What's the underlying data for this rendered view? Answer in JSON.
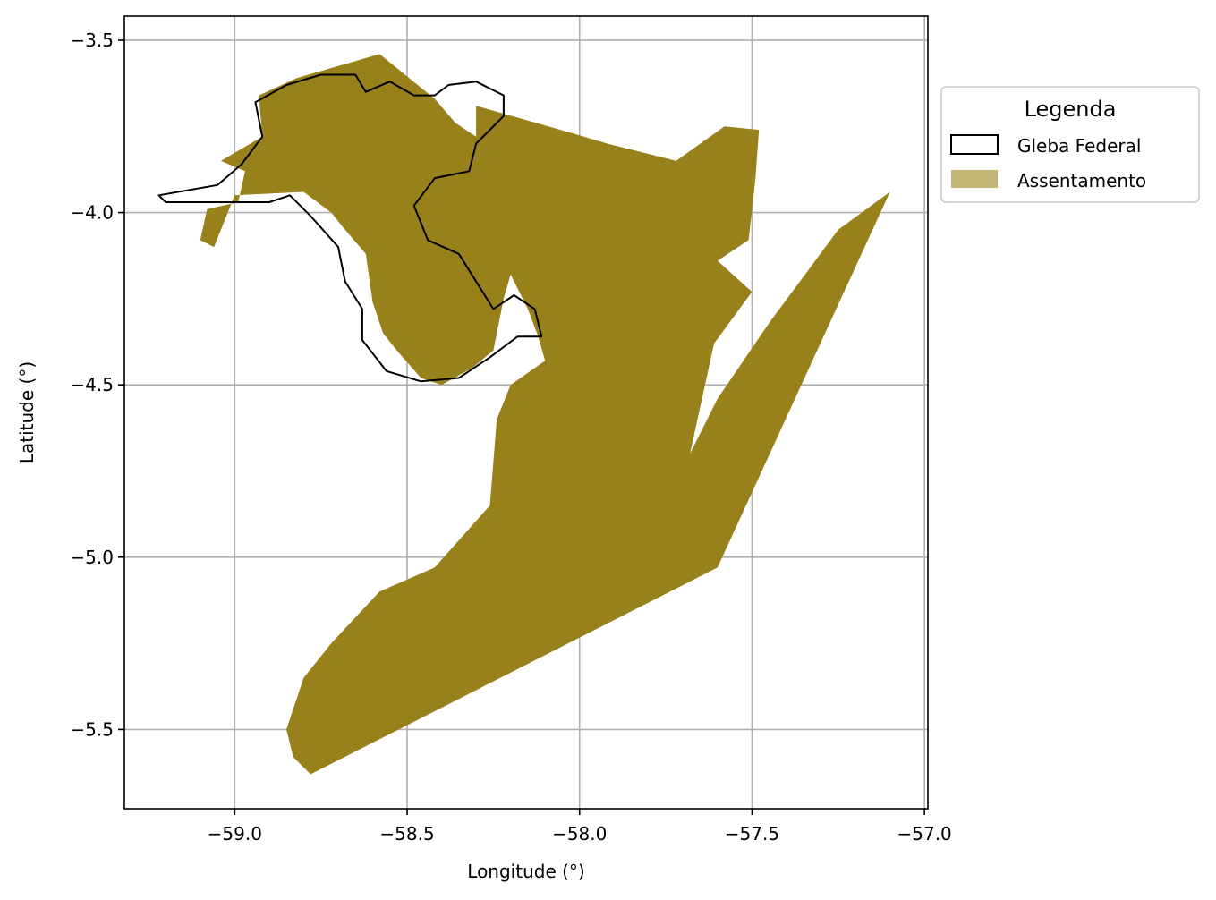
{
  "chart_data": {
    "type": "map",
    "xlabel": "Longitude (°)",
    "ylabel": "Latitude (°)",
    "xlim": [
      -59.32,
      -56.99
    ],
    "ylim": [
      -5.73,
      -3.43
    ],
    "x_ticks": [
      -59.0,
      -58.5,
      -58.0,
      -57.5,
      -57.0
    ],
    "x_tick_labels": [
      "−59.0",
      "−58.5",
      "−58.0",
      "−57.5",
      "−57.0"
    ],
    "y_ticks": [
      -3.5,
      -4.0,
      -4.5,
      -5.0,
      -5.5
    ],
    "y_tick_labels": [
      "−3.5",
      "−4.0",
      "−4.5",
      "−5.0",
      "−5.5"
    ],
    "grid": true,
    "legend": {
      "title": "Legenda",
      "placement": "outside-right",
      "entries": [
        {
          "label": "Gleba Federal",
          "style": "outline",
          "color": "#000000"
        },
        {
          "label": "Assentamento",
          "style": "fill",
          "color": "#c2b472"
        }
      ]
    },
    "colors": {
      "assentamento": "#98801a",
      "gleba_outline": "#000000",
      "grid": "#b0b0b0"
    },
    "layers": [
      {
        "name": "Assentamento",
        "type": "polygon",
        "rings": [
          [
            [
              -58.58,
              -3.54
            ],
            [
              -58.82,
              -3.61
            ],
            [
              -58.93,
              -3.66
            ],
            [
              -58.92,
              -3.78
            ],
            [
              -59.04,
              -3.85
            ],
            [
              -58.97,
              -3.88
            ],
            [
              -58.99,
              -3.97
            ],
            [
              -59.08,
              -3.99
            ],
            [
              -59.1,
              -4.08
            ],
            [
              -59.06,
              -4.1
            ],
            [
              -59.0,
              -3.95
            ],
            [
              -58.8,
              -3.94
            ],
            [
              -58.72,
              -4.0
            ],
            [
              -58.68,
              -4.05
            ],
            [
              -58.62,
              -4.12
            ],
            [
              -58.6,
              -4.26
            ],
            [
              -58.57,
              -4.35
            ],
            [
              -58.53,
              -4.4
            ],
            [
              -58.46,
              -4.48
            ],
            [
              -58.4,
              -4.5
            ],
            [
              -58.31,
              -4.45
            ],
            [
              -58.25,
              -4.4
            ],
            [
              -58.22,
              -4.25
            ],
            [
              -58.2,
              -4.18
            ],
            [
              -58.15,
              -4.28
            ],
            [
              -58.12,
              -4.36
            ],
            [
              -58.1,
              -4.43
            ],
            [
              -58.2,
              -4.5
            ],
            [
              -58.24,
              -4.6
            ],
            [
              -58.26,
              -4.85
            ],
            [
              -58.42,
              -5.03
            ],
            [
              -58.58,
              -5.1
            ],
            [
              -58.72,
              -5.25
            ],
            [
              -58.8,
              -5.35
            ],
            [
              -58.85,
              -5.5
            ],
            [
              -58.83,
              -5.58
            ],
            [
              -58.78,
              -5.63
            ],
            [
              -57.6,
              -5.03
            ],
            [
              -57.1,
              -3.94
            ],
            [
              -57.25,
              -4.05
            ],
            [
              -57.45,
              -4.32
            ],
            [
              -57.6,
              -4.54
            ],
            [
              -57.68,
              -4.7
            ],
            [
              -57.61,
              -4.38
            ],
            [
              -57.5,
              -4.23
            ],
            [
              -57.6,
              -4.14
            ],
            [
              -57.51,
              -4.08
            ],
            [
              -57.49,
              -3.9
            ],
            [
              -57.48,
              -3.76
            ],
            [
              -57.58,
              -3.75
            ],
            [
              -57.72,
              -3.85
            ],
            [
              -57.92,
              -3.8
            ],
            [
              -58.02,
              -3.77
            ],
            [
              -58.3,
              -3.69
            ],
            [
              -58.3,
              -3.78
            ],
            [
              -58.36,
              -3.74
            ],
            [
              -58.42,
              -3.67
            ]
          ]
        ]
      },
      {
        "name": "Gleba Federal",
        "type": "polygon-outline",
        "rings": [
          [
            [
              -59.22,
              -3.95
            ],
            [
              -59.05,
              -3.92
            ],
            [
              -58.98,
              -3.86
            ],
            [
              -58.92,
              -3.78
            ],
            [
              -58.94,
              -3.68
            ],
            [
              -58.85,
              -3.63
            ],
            [
              -58.75,
              -3.6
            ],
            [
              -58.65,
              -3.6
            ],
            [
              -58.62,
              -3.65
            ],
            [
              -58.55,
              -3.62
            ],
            [
              -58.48,
              -3.66
            ],
            [
              -58.42,
              -3.66
            ],
            [
              -58.38,
              -3.63
            ],
            [
              -58.3,
              -3.62
            ],
            [
              -58.22,
              -3.66
            ],
            [
              -58.22,
              -3.72
            ],
            [
              -58.3,
              -3.8
            ],
            [
              -58.32,
              -3.88
            ],
            [
              -58.42,
              -3.9
            ],
            [
              -58.48,
              -3.98
            ],
            [
              -58.44,
              -4.08
            ],
            [
              -58.35,
              -4.12
            ],
            [
              -58.3,
              -4.2
            ],
            [
              -58.25,
              -4.28
            ],
            [
              -58.19,
              -4.24
            ],
            [
              -58.13,
              -4.28
            ],
            [
              -58.11,
              -4.36
            ],
            [
              -58.18,
              -4.36
            ],
            [
              -58.26,
              -4.42
            ],
            [
              -58.35,
              -4.48
            ],
            [
              -58.46,
              -4.49
            ],
            [
              -58.56,
              -4.46
            ],
            [
              -58.63,
              -4.37
            ],
            [
              -58.63,
              -4.28
            ],
            [
              -58.68,
              -4.2
            ],
            [
              -58.7,
              -4.1
            ],
            [
              -58.78,
              -4.01
            ],
            [
              -58.84,
              -3.95
            ],
            [
              -58.9,
              -3.97
            ],
            [
              -59.0,
              -3.97
            ],
            [
              -59.12,
              -3.97
            ],
            [
              -59.2,
              -3.97
            ]
          ]
        ]
      }
    ]
  }
}
